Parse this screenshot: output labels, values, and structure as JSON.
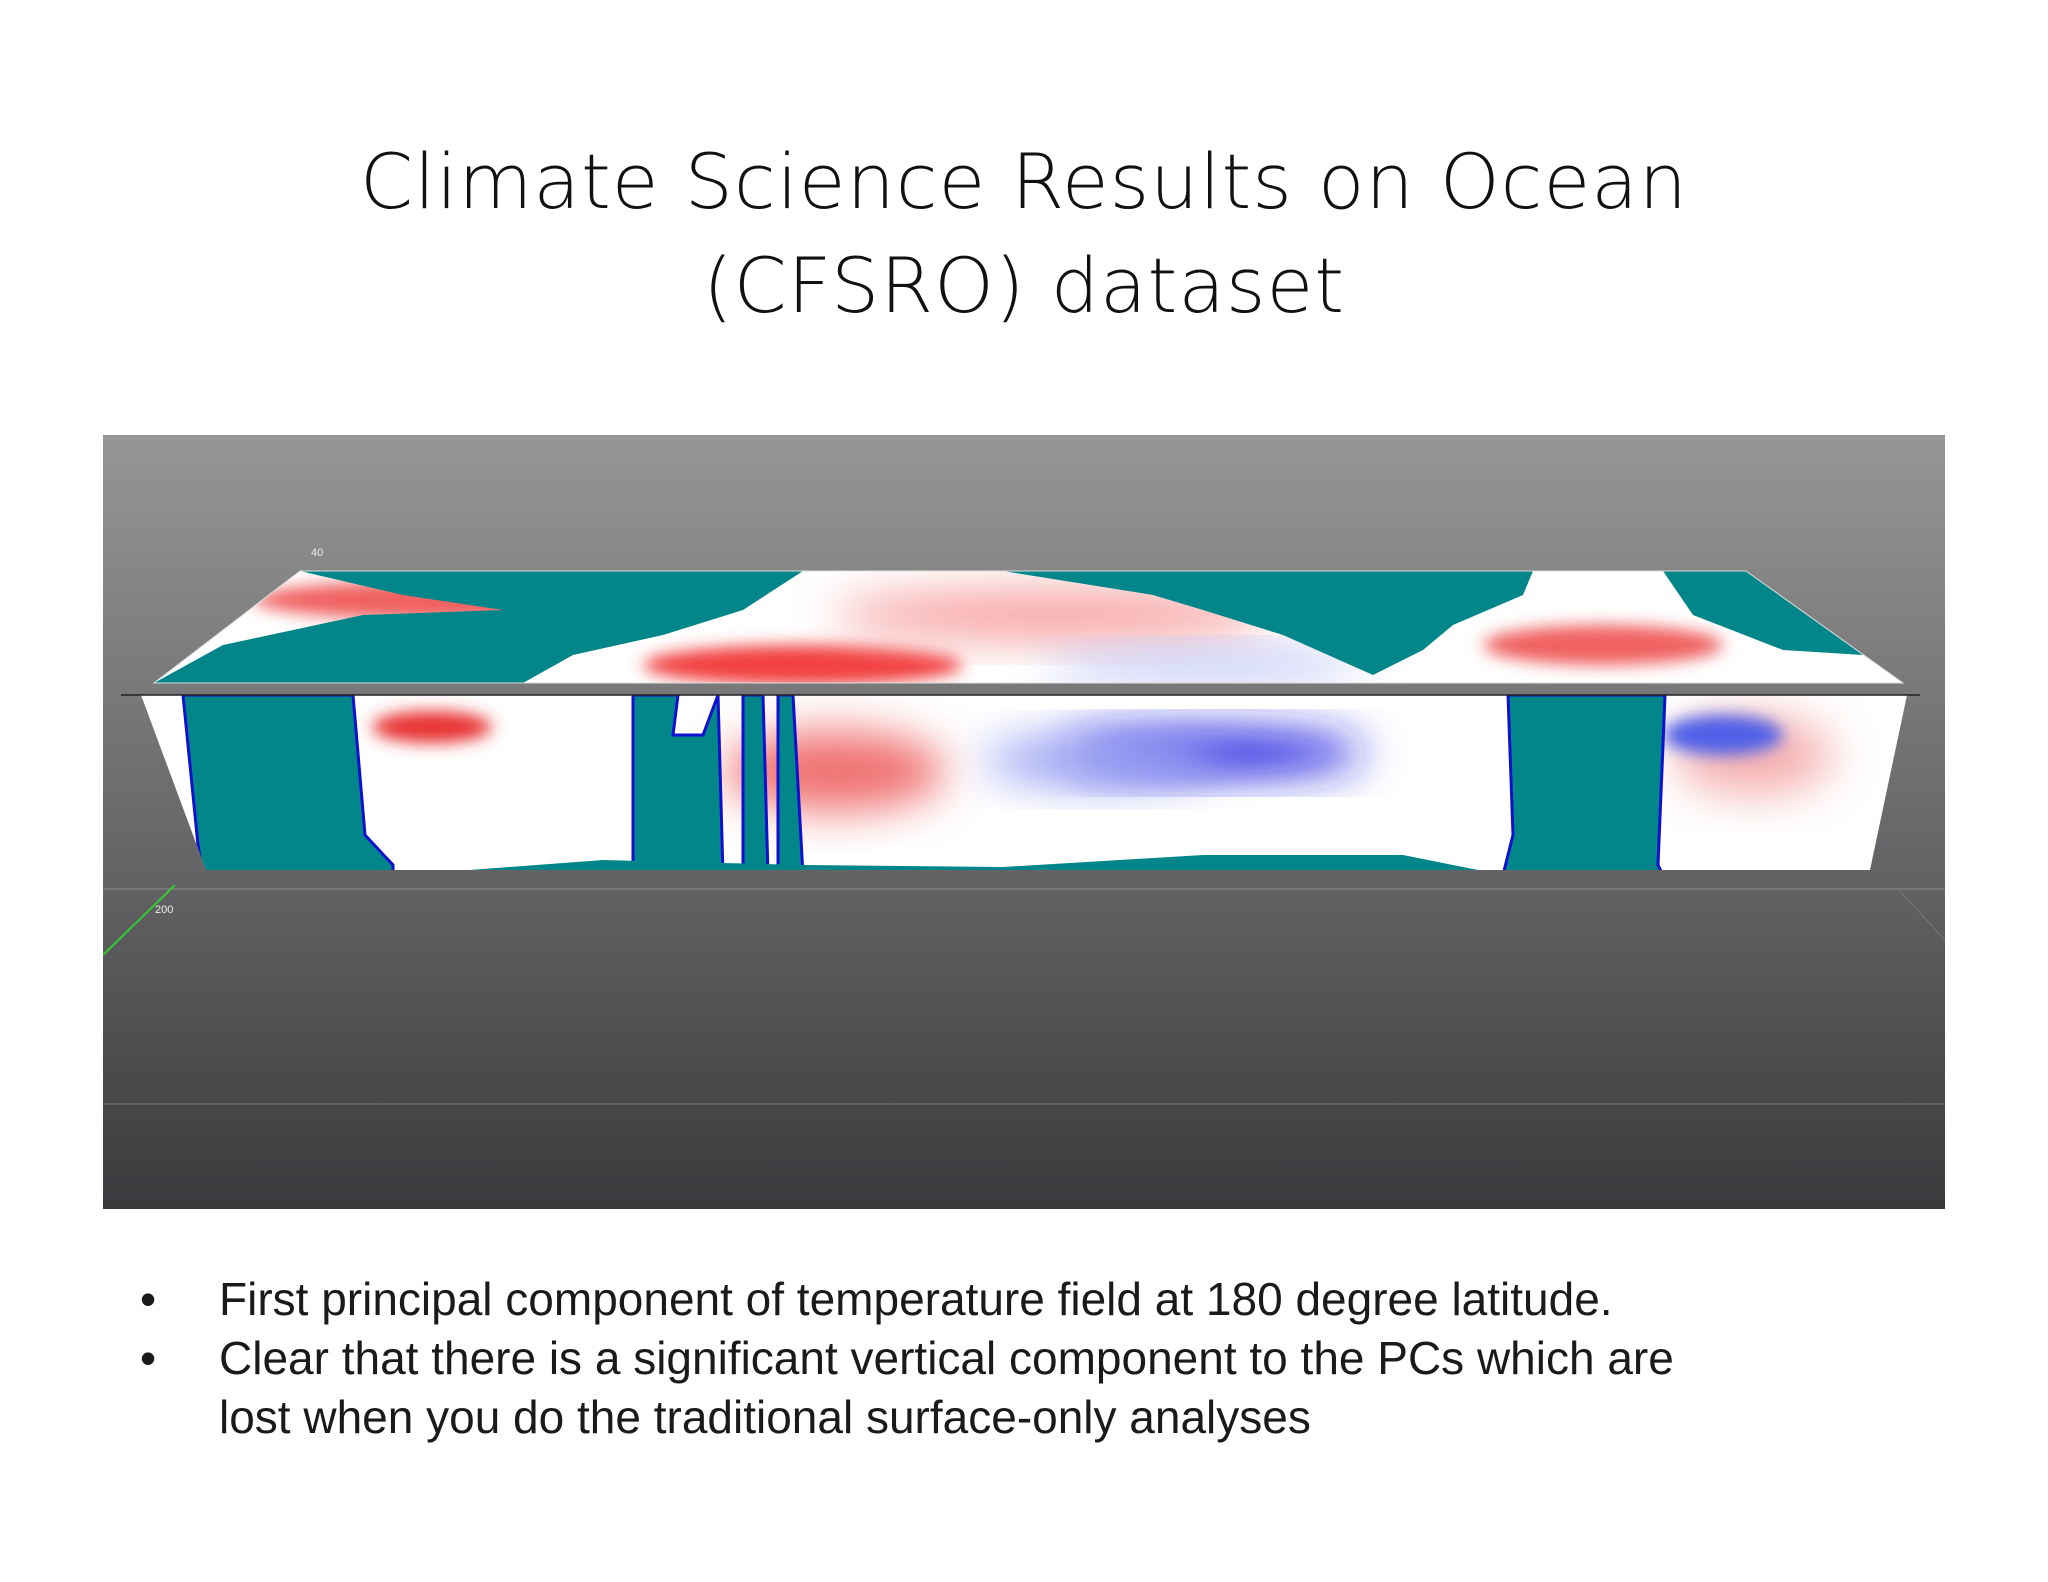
{
  "title": [
    "Climate Science Results on Ocean",
    "(CFSRO) dataset"
  ],
  "figure": {
    "labels": [
      "40",
      "200"
    ]
  },
  "bullets": [
    {
      "lines": [
        "First principal component of temperature field at 180 degree latitude."
      ]
    },
    {
      "lines": [
        "Clear that there is a significant vertical component to the PCs which are",
        "lost when you do the traditional surface-only analyses"
      ]
    }
  ]
}
